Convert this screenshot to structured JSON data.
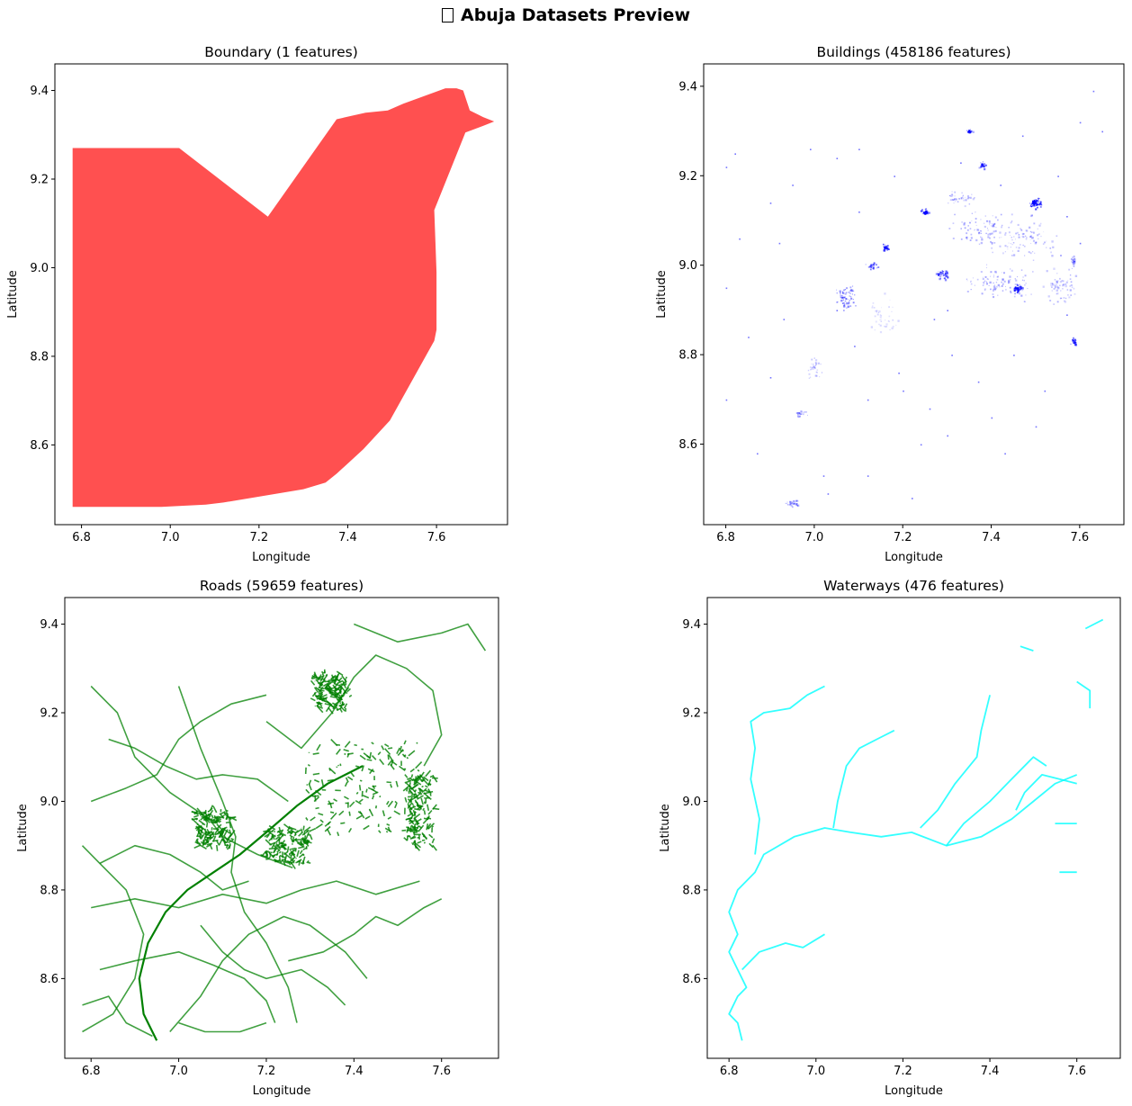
{
  "figure": {
    "title": "Abuja Datasets Preview",
    "title_icon": "map-icon"
  },
  "chart_data": [
    {
      "type": "area",
      "title": "Boundary (1 features)",
      "xlabel": "Longitude",
      "ylabel": "Latitude",
      "xlim": [
        6.74,
        7.76
      ],
      "ylim": [
        8.42,
        9.46
      ],
      "xticks": [
        "6.8",
        "7.0",
        "7.2",
        "7.4",
        "7.6"
      ],
      "yticks": [
        "8.6",
        "8.8",
        "9.0",
        "9.2",
        "9.4"
      ],
      "color": "#ff5050",
      "polygon": [
        [
          6.78,
          9.27
        ],
        [
          7.02,
          9.27
        ],
        [
          7.22,
          9.115
        ],
        [
          7.375,
          9.335
        ],
        [
          7.44,
          9.35
        ],
        [
          7.49,
          9.355
        ],
        [
          7.525,
          9.37
        ],
        [
          7.62,
          9.405
        ],
        [
          7.645,
          9.405
        ],
        [
          7.66,
          9.4
        ],
        [
          7.675,
          9.355
        ],
        [
          7.705,
          9.34
        ],
        [
          7.73,
          9.33
        ],
        [
          7.705,
          9.32
        ],
        [
          7.665,
          9.305
        ],
        [
          7.595,
          9.13
        ],
        [
          7.6,
          8.99
        ],
        [
          7.6,
          8.86
        ],
        [
          7.595,
          8.835
        ],
        [
          7.495,
          8.655
        ],
        [
          7.435,
          8.59
        ],
        [
          7.375,
          8.535
        ],
        [
          7.35,
          8.515
        ],
        [
          7.3,
          8.5
        ],
        [
          7.12,
          8.47
        ],
        [
          7.08,
          8.465
        ],
        [
          6.98,
          8.46
        ],
        [
          6.78,
          8.46
        ]
      ]
    },
    {
      "type": "scatter",
      "title": "Buildings (458186 features)",
      "xlabel": "Longitude",
      "ylabel": "Latitude",
      "xlim": [
        6.75,
        7.7
      ],
      "ylim": [
        8.42,
        9.45
      ],
      "xticks": [
        "6.8",
        "7.0",
        "7.2",
        "7.4",
        "7.6"
      ],
      "yticks": [
        "8.6",
        "8.8",
        "9.0",
        "9.2",
        "9.4"
      ],
      "color": "#0000ff",
      "clusters": [
        [
          7.38,
          9.08,
          0.09,
          0.05,
          0.35
        ],
        [
          7.48,
          9.06,
          0.09,
          0.06,
          0.3
        ],
        [
          7.42,
          8.96,
          0.1,
          0.05,
          0.35
        ],
        [
          7.55,
          8.95,
          0.05,
          0.05,
          0.3
        ],
        [
          7.33,
          9.15,
          0.04,
          0.02,
          0.3
        ],
        [
          7.07,
          8.93,
          0.03,
          0.03,
          0.5
        ],
        [
          7.5,
          9.14,
          0.015,
          0.015,
          0.9
        ],
        [
          7.46,
          8.95,
          0.012,
          0.01,
          0.9
        ],
        [
          7.29,
          8.98,
          0.02,
          0.015,
          0.6
        ],
        [
          7.16,
          9.04,
          0.01,
          0.01,
          0.7
        ],
        [
          7.13,
          9.0,
          0.015,
          0.01,
          0.5
        ],
        [
          7.38,
          9.225,
          0.01,
          0.01,
          0.6
        ],
        [
          7.585,
          8.83,
          0.01,
          0.01,
          0.6
        ],
        [
          7.585,
          9.01,
          0.006,
          0.02,
          0.35
        ],
        [
          7.35,
          9.3,
          0.01,
          0.005,
          0.6
        ],
        [
          7.0,
          8.77,
          0.02,
          0.03,
          0.25
        ],
        [
          6.97,
          8.67,
          0.015,
          0.01,
          0.35
        ],
        [
          6.95,
          8.47,
          0.02,
          0.01,
          0.4
        ],
        [
          7.25,
          9.12,
          0.01,
          0.01,
          0.8
        ],
        [
          7.15,
          8.88,
          0.05,
          0.06,
          0.18
        ]
      ],
      "scatter_pts": [
        [
          6.8,
          9.22
        ],
        [
          6.83,
          9.06
        ],
        [
          6.8,
          8.95
        ],
        [
          6.85,
          8.84
        ],
        [
          6.8,
          8.7
        ],
        [
          6.87,
          8.58
        ],
        [
          6.82,
          9.25
        ],
        [
          6.95,
          9.18
        ],
        [
          6.92,
          9.05
        ],
        [
          6.9,
          9.14
        ],
        [
          7.05,
          9.24
        ],
        [
          7.1,
          9.12
        ],
        [
          7.2,
          8.72
        ],
        [
          7.26,
          8.68
        ],
        [
          7.31,
          8.8
        ],
        [
          7.37,
          8.74
        ],
        [
          7.45,
          8.8
        ],
        [
          7.5,
          8.64
        ],
        [
          7.52,
          8.72
        ],
        [
          7.57,
          8.89
        ],
        [
          7.43,
          8.58
        ],
        [
          7.12,
          8.53
        ],
        [
          7.02,
          8.53
        ],
        [
          7.24,
          8.6
        ],
        [
          6.9,
          8.75
        ],
        [
          7.63,
          9.39
        ],
        [
          7.6,
          9.32
        ],
        [
          7.65,
          9.3
        ],
        [
          7.47,
          9.29
        ],
        [
          7.55,
          9.2
        ],
        [
          7.6,
          9.05
        ],
        [
          7.27,
          8.88
        ],
        [
          7.3,
          8.9
        ],
        [
          7.09,
          8.82
        ],
        [
          7.19,
          8.76
        ],
        [
          6.93,
          8.88
        ],
        [
          7.05,
          8.9
        ],
        [
          7.12,
          8.7
        ],
        [
          7.3,
          8.62
        ],
        [
          7.4,
          8.66
        ],
        [
          7.33,
          9.23
        ],
        [
          7.42,
          9.18
        ],
        [
          7.57,
          9.11
        ],
        [
          7.1,
          9.26
        ],
        [
          6.99,
          9.26
        ],
        [
          7.18,
          9.2
        ],
        [
          7.22,
          8.48
        ],
        [
          7.03,
          8.49
        ]
      ]
    },
    {
      "type": "line",
      "title": "Roads (59659 features)",
      "xlabel": "Longitude",
      "ylabel": "Latitude",
      "xlim": [
        6.74,
        7.73
      ],
      "ylim": [
        8.42,
        9.46
      ],
      "xticks": [
        "6.8",
        "7.0",
        "7.2",
        "7.4",
        "7.6"
      ],
      "yticks": [
        "8.6",
        "8.8",
        "9.0",
        "9.2",
        "9.4"
      ],
      "color": "#008000",
      "highway": [
        [
          6.95,
          8.46
        ],
        [
          6.92,
          8.52
        ],
        [
          6.91,
          8.6
        ],
        [
          6.93,
          8.68
        ],
        [
          6.97,
          8.75
        ],
        [
          7.02,
          8.8
        ],
        [
          7.08,
          8.84
        ],
        [
          7.14,
          8.88
        ],
        [
          7.2,
          8.93
        ],
        [
          7.27,
          8.99
        ],
        [
          7.34,
          9.04
        ],
        [
          7.42,
          9.08
        ]
      ],
      "roads": [
        [
          [
            6.8,
            9.26
          ],
          [
            6.86,
            9.2
          ],
          [
            6.9,
            9.1
          ],
          [
            6.98,
            9.02
          ],
          [
            7.07,
            8.96
          ],
          [
            7.1,
            8.92
          ],
          [
            7.18,
            8.88
          ],
          [
            7.26,
            8.85
          ]
        ],
        [
          [
            6.78,
            8.48
          ],
          [
            6.85,
            8.52
          ],
          [
            6.9,
            8.6
          ],
          [
            6.92,
            8.7
          ],
          [
            6.88,
            8.8
          ],
          [
            6.82,
            8.86
          ],
          [
            6.78,
            8.9
          ]
        ],
        [
          [
            6.8,
            9.0
          ],
          [
            6.88,
            9.03
          ],
          [
            6.95,
            9.06
          ],
          [
            7.0,
            9.14
          ],
          [
            7.05,
            9.18
          ],
          [
            7.12,
            9.22
          ],
          [
            7.2,
            9.24
          ]
        ],
        [
          [
            6.8,
            8.76
          ],
          [
            6.9,
            8.78
          ],
          [
            7.0,
            8.76
          ],
          [
            7.1,
            8.79
          ],
          [
            7.2,
            8.77
          ],
          [
            7.28,
            8.8
          ],
          [
            7.36,
            8.82
          ],
          [
            7.45,
            8.79
          ],
          [
            7.55,
            8.82
          ]
        ],
        [
          [
            6.98,
            8.48
          ],
          [
            7.05,
            8.56
          ],
          [
            7.1,
            8.64
          ],
          [
            7.16,
            8.7
          ],
          [
            7.24,
            8.74
          ],
          [
            7.3,
            8.72
          ],
          [
            7.38,
            8.66
          ],
          [
            7.43,
            8.6
          ]
        ],
        [
          [
            7.0,
            9.26
          ],
          [
            7.05,
            9.12
          ],
          [
            7.1,
            9.0
          ],
          [
            7.13,
            8.92
          ],
          [
            7.12,
            8.84
          ],
          [
            7.15,
            8.75
          ],
          [
            7.2,
            8.68
          ],
          [
            7.25,
            8.58
          ],
          [
            7.27,
            8.5
          ]
        ],
        [
          [
            7.4,
            9.4
          ],
          [
            7.5,
            9.36
          ],
          [
            7.6,
            9.38
          ],
          [
            7.66,
            9.4
          ],
          [
            7.7,
            9.34
          ]
        ],
        [
          [
            7.2,
            9.18
          ],
          [
            7.28,
            9.12
          ],
          [
            7.35,
            9.2
          ],
          [
            7.4,
            9.28
          ],
          [
            7.45,
            9.33
          ],
          [
            7.52,
            9.3
          ],
          [
            7.58,
            9.25
          ],
          [
            7.6,
            9.15
          ],
          [
            7.56,
            9.08
          ]
        ],
        [
          [
            6.82,
            8.62
          ],
          [
            6.9,
            8.64
          ],
          [
            7.0,
            8.66
          ],
          [
            7.08,
            8.63
          ],
          [
            7.15,
            8.6
          ],
          [
            7.2,
            8.55
          ],
          [
            7.22,
            8.5
          ]
        ],
        [
          [
            7.25,
            8.64
          ],
          [
            7.33,
            8.66
          ],
          [
            7.4,
            8.7
          ],
          [
            7.45,
            8.74
          ],
          [
            7.5,
            8.72
          ],
          [
            7.56,
            8.76
          ],
          [
            7.6,
            8.78
          ]
        ],
        [
          [
            6.84,
            9.14
          ],
          [
            6.9,
            9.12
          ],
          [
            6.97,
            9.08
          ],
          [
            7.04,
            9.05
          ],
          [
            7.1,
            9.06
          ],
          [
            7.18,
            9.05
          ],
          [
            7.25,
            9.0
          ]
        ],
        [
          [
            6.82,
            8.86
          ],
          [
            6.9,
            8.9
          ],
          [
            6.98,
            8.88
          ],
          [
            7.05,
            8.84
          ],
          [
            7.1,
            8.8
          ],
          [
            7.16,
            8.82
          ]
        ],
        [
          [
            7.05,
            8.72
          ],
          [
            7.1,
            8.66
          ],
          [
            7.15,
            8.62
          ],
          [
            7.2,
            8.6
          ],
          [
            7.28,
            8.62
          ],
          [
            7.34,
            8.58
          ],
          [
            7.38,
            8.54
          ]
        ],
        [
          [
            7.0,
            8.5
          ],
          [
            7.06,
            8.48
          ],
          [
            7.14,
            8.48
          ],
          [
            7.2,
            8.5
          ]
        ],
        [
          [
            6.78,
            8.54
          ],
          [
            6.84,
            8.56
          ],
          [
            6.88,
            8.5
          ],
          [
            6.94,
            8.47
          ]
        ]
      ]
    },
    {
      "type": "line",
      "title": "Waterways (476 features)",
      "xlabel": "Longitude",
      "ylabel": "Latitude",
      "xlim": [
        6.75,
        7.7
      ],
      "ylim": [
        8.42,
        9.46
      ],
      "xticks": [
        "6.8",
        "7.0",
        "7.2",
        "7.4",
        "7.6"
      ],
      "yticks": [
        "8.6",
        "8.8",
        "9.0",
        "9.2",
        "9.4"
      ],
      "color": "#00ffff",
      "rivers": [
        [
          [
            6.83,
            8.46
          ],
          [
            6.82,
            8.5
          ],
          [
            6.8,
            8.52
          ],
          [
            6.82,
            8.56
          ],
          [
            6.84,
            8.58
          ],
          [
            6.82,
            8.62
          ],
          [
            6.8,
            8.66
          ],
          [
            6.82,
            8.7
          ],
          [
            6.8,
            8.75
          ],
          [
            6.82,
            8.8
          ],
          [
            6.86,
            8.84
          ],
          [
            6.88,
            8.88
          ],
          [
            6.95,
            8.92
          ],
          [
            7.02,
            8.94
          ],
          [
            7.08,
            8.93
          ],
          [
            7.15,
            8.92
          ],
          [
            7.22,
            8.93
          ],
          [
            7.3,
            8.9
          ],
          [
            7.38,
            8.92
          ],
          [
            7.45,
            8.96
          ],
          [
            7.5,
            9.0
          ],
          [
            7.55,
            9.04
          ],
          [
            7.6,
            9.06
          ]
        ],
        [
          [
            6.86,
            8.88
          ],
          [
            6.87,
            8.96
          ],
          [
            6.85,
            9.05
          ],
          [
            6.86,
            9.12
          ],
          [
            6.85,
            9.18
          ],
          [
            6.88,
            9.2
          ],
          [
            6.94,
            9.21
          ],
          [
            6.98,
            9.24
          ],
          [
            7.02,
            9.26
          ]
        ],
        [
          [
            7.04,
            8.94
          ],
          [
            7.05,
            9.0
          ],
          [
            7.07,
            9.08
          ],
          [
            7.1,
            9.12
          ],
          [
            7.14,
            9.14
          ],
          [
            7.18,
            9.16
          ]
        ],
        [
          [
            6.83,
            8.62
          ],
          [
            6.87,
            8.66
          ],
          [
            6.93,
            8.68
          ],
          [
            6.97,
            8.67
          ],
          [
            7.02,
            8.7
          ]
        ],
        [
          [
            7.24,
            8.94
          ],
          [
            7.28,
            8.98
          ],
          [
            7.32,
            9.04
          ],
          [
            7.37,
            9.1
          ],
          [
            7.38,
            9.16
          ],
          [
            7.4,
            9.24
          ]
        ],
        [
          [
            7.3,
            8.9
          ],
          [
            7.34,
            8.95
          ],
          [
            7.4,
            9.0
          ],
          [
            7.45,
            9.05
          ],
          [
            7.5,
            9.1
          ],
          [
            7.53,
            9.08
          ]
        ],
        [
          [
            7.55,
            8.95
          ],
          [
            7.6,
            8.95
          ]
        ],
        [
          [
            7.46,
            8.98
          ],
          [
            7.48,
            9.02
          ],
          [
            7.52,
            9.06
          ],
          [
            7.56,
            9.05
          ],
          [
            7.6,
            9.04
          ]
        ],
        [
          [
            7.56,
            8.84
          ],
          [
            7.6,
            8.84
          ]
        ],
        [
          [
            7.6,
            9.27
          ],
          [
            7.63,
            9.25
          ],
          [
            7.63,
            9.21
          ]
        ],
        [
          [
            7.62,
            9.39
          ],
          [
            7.64,
            9.4
          ],
          [
            7.66,
            9.41
          ]
        ],
        [
          [
            7.47,
            9.35
          ],
          [
            7.5,
            9.34
          ]
        ]
      ]
    }
  ]
}
